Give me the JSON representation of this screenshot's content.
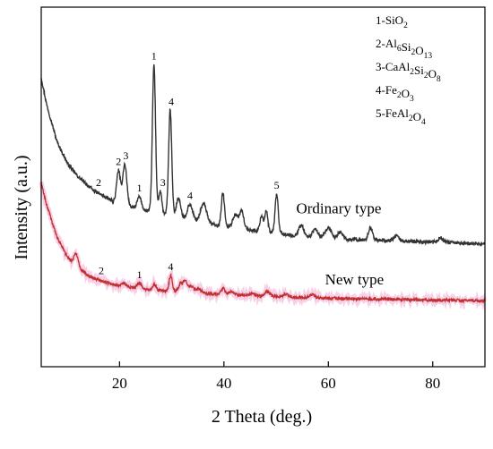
{
  "chart_data": {
    "type": "line",
    "xlabel": "2 Theta (deg.)",
    "ylabel": "Intensity (a.u.)",
    "xlim": [
      5,
      90
    ],
    "x_ticks": [
      20,
      40,
      60,
      80
    ],
    "y_ticks_shown": false,
    "grid": false,
    "legend_position": "top-right",
    "legend": [
      {
        "number": "1",
        "formula": [
          {
            "t": "SiO"
          },
          {
            "s": "2"
          }
        ]
      },
      {
        "number": "2",
        "formula": [
          {
            "t": "Al"
          },
          {
            "s": "6"
          },
          {
            "t": "Si"
          },
          {
            "s": "2"
          },
          {
            "t": "O"
          },
          {
            "s": "13"
          }
        ]
      },
      {
        "number": "3",
        "formula": [
          {
            "t": "CaAl"
          },
          {
            "s": "2"
          },
          {
            "t": "Si"
          },
          {
            "s": "2"
          },
          {
            "t": "O"
          },
          {
            "s": "8"
          }
        ]
      },
      {
        "number": "4",
        "formula": [
          {
            "t": "Fe"
          },
          {
            "s": "2"
          },
          {
            "t": "O"
          },
          {
            "s": "3"
          }
        ]
      },
      {
        "number": "5",
        "formula": [
          {
            "t": "FeAl"
          },
          {
            "s": "2"
          },
          {
            "t": "O"
          },
          {
            "s": "4"
          }
        ]
      }
    ],
    "series": [
      {
        "name": "Ordinary type",
        "color": "#333333",
        "baseline": [
          [
            5,
            330
          ],
          [
            6,
            300
          ],
          [
            8,
            257
          ],
          [
            10,
            232
          ],
          [
            12,
            217
          ],
          [
            15,
            201
          ],
          [
            18,
            191
          ],
          [
            20,
            185
          ],
          [
            25,
            178
          ],
          [
            30,
            172
          ],
          [
            35,
            165
          ],
          [
            40,
            160
          ],
          [
            45,
            156
          ],
          [
            50,
            152
          ],
          [
            55,
            148
          ],
          [
            60,
            146
          ],
          [
            65,
            145
          ],
          [
            70,
            144
          ],
          [
            75,
            143
          ],
          [
            80,
            142
          ],
          [
            85,
            141
          ],
          [
            90,
            140
          ]
        ],
        "peaks": [
          [
            19.8,
            38,
            0.35
          ],
          [
            21.0,
            47,
            0.4
          ],
          [
            23.8,
            14,
            0.4
          ],
          [
            26.6,
            168,
            0.3
          ],
          [
            27.8,
            25,
            0.3
          ],
          [
            29.7,
            120,
            0.3
          ],
          [
            31.3,
            22,
            0.4
          ],
          [
            33.5,
            18,
            0.5
          ],
          [
            36.1,
            22,
            0.6
          ],
          [
            39.8,
            38,
            0.3
          ],
          [
            42.2,
            15,
            0.5
          ],
          [
            43.4,
            20,
            0.4
          ],
          [
            47.2,
            18,
            0.3
          ],
          [
            48.1,
            24,
            0.3
          ],
          [
            50.1,
            45,
            0.3
          ],
          [
            54.8,
            13,
            0.5
          ],
          [
            57.5,
            10,
            0.5
          ],
          [
            60.0,
            12,
            0.6
          ],
          [
            62.3,
            8,
            0.5
          ],
          [
            68.1,
            14,
            0.4
          ],
          [
            73.0,
            6,
            0.5
          ],
          [
            81.5,
            5,
            0.5
          ]
        ],
        "labels": [
          {
            "text": "1",
            "x": 26.6
          },
          {
            "text": "2",
            "x": 19.8
          },
          {
            "text": "3",
            "x": 21.2
          },
          {
            "text": "2",
            "x": 16.0
          },
          {
            "text": "1",
            "x": 23.8
          },
          {
            "text": "3",
            "x": 28.3
          },
          {
            "text": "4",
            "x": 29.9
          },
          {
            "text": "4",
            "x": 33.5
          },
          {
            "text": "5",
            "x": 50.1
          }
        ]
      },
      {
        "name": "New type",
        "color": "#c03030",
        "baseline": [
          [
            5,
            210
          ],
          [
            6,
            185
          ],
          [
            8,
            148
          ],
          [
            10,
            125
          ],
          [
            12,
            112
          ],
          [
            15,
            101
          ],
          [
            18,
            95
          ],
          [
            20,
            92
          ],
          [
            25,
            88
          ],
          [
            30,
            86
          ],
          [
            35,
            84
          ],
          [
            40,
            82
          ],
          [
            45,
            81
          ],
          [
            50,
            80
          ],
          [
            55,
            79
          ],
          [
            60,
            78
          ],
          [
            70,
            77
          ],
          [
            80,
            76
          ],
          [
            90,
            75
          ]
        ],
        "peaks": [
          [
            11.7,
            15,
            0.4
          ],
          [
            20.8,
            4,
            0.5
          ],
          [
            23.8,
            6,
            0.5
          ],
          [
            26.7,
            7,
            0.3
          ],
          [
            29.8,
            18,
            0.3
          ],
          [
            31.7,
            9,
            0.4
          ],
          [
            32.6,
            12,
            0.4
          ],
          [
            33.8,
            8,
            0.4
          ],
          [
            35.2,
            5,
            0.5
          ],
          [
            39.8,
            7,
            0.4
          ],
          [
            41.5,
            4,
            0.5
          ],
          [
            45.5,
            3,
            0.5
          ],
          [
            48.3,
            5,
            0.5
          ],
          [
            52.0,
            3,
            0.5
          ],
          [
            57.0,
            3,
            0.5
          ]
        ],
        "labels": [
          {
            "text": "2",
            "x": 16.5
          },
          {
            "text": "1",
            "x": 23.8
          },
          {
            "text": "4",
            "x": 29.8
          }
        ]
      }
    ]
  }
}
